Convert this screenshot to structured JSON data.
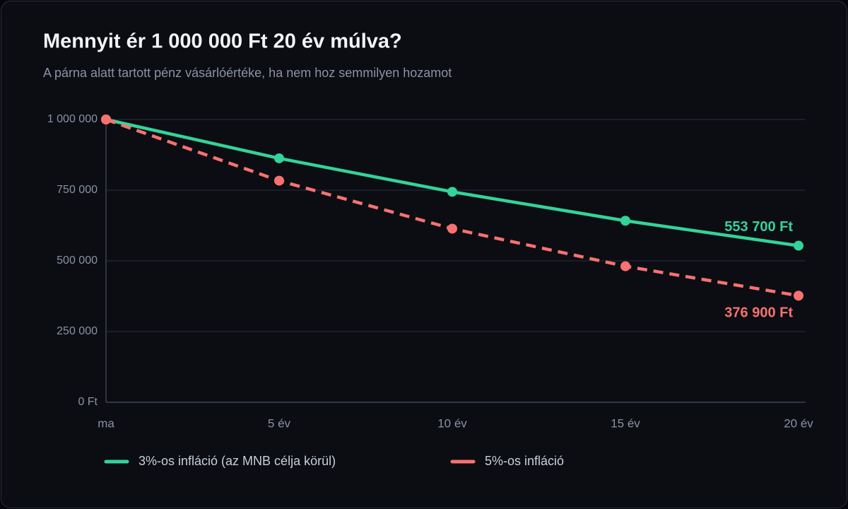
{
  "chart_data": {
    "type": "line",
    "title": "Mennyit ér 1 000 000 Ft 20 év múlva?",
    "subtitle": "A párna alatt tartott pénz vásárlóértéke, ha nem hoz semmilyen hozamot",
    "categories": [
      "ma",
      "5 év",
      "10 év",
      "15 év",
      "20 év"
    ],
    "series": [
      {
        "name": "3%-os infláció (az MNB célja körül)",
        "color": "#34d399",
        "line_style": "solid",
        "values": [
          1000000,
          862600,
          744100,
          641900,
          553700
        ],
        "value_labels": [
          null,
          null,
          null,
          null,
          "553 700 Ft"
        ]
      },
      {
        "name": "5%-os infláció",
        "color": "#f87171",
        "line_style": "dashed",
        "values": [
          1000000,
          783500,
          613900,
          481000,
          376900
        ],
        "value_labels": [
          null,
          null,
          null,
          null,
          "376 900 Ft"
        ]
      }
    ],
    "ylim": [
      0,
      1000000
    ],
    "yticks": [
      {
        "value": 0,
        "label": "0 Ft"
      },
      {
        "value": 250000,
        "label": "250 000"
      },
      {
        "value": 500000,
        "label": "500 000"
      },
      {
        "value": 750000,
        "label": "750 000"
      },
      {
        "value": 1000000,
        "label": "1 000 000"
      }
    ],
    "grid": true,
    "legend": "bottom"
  }
}
